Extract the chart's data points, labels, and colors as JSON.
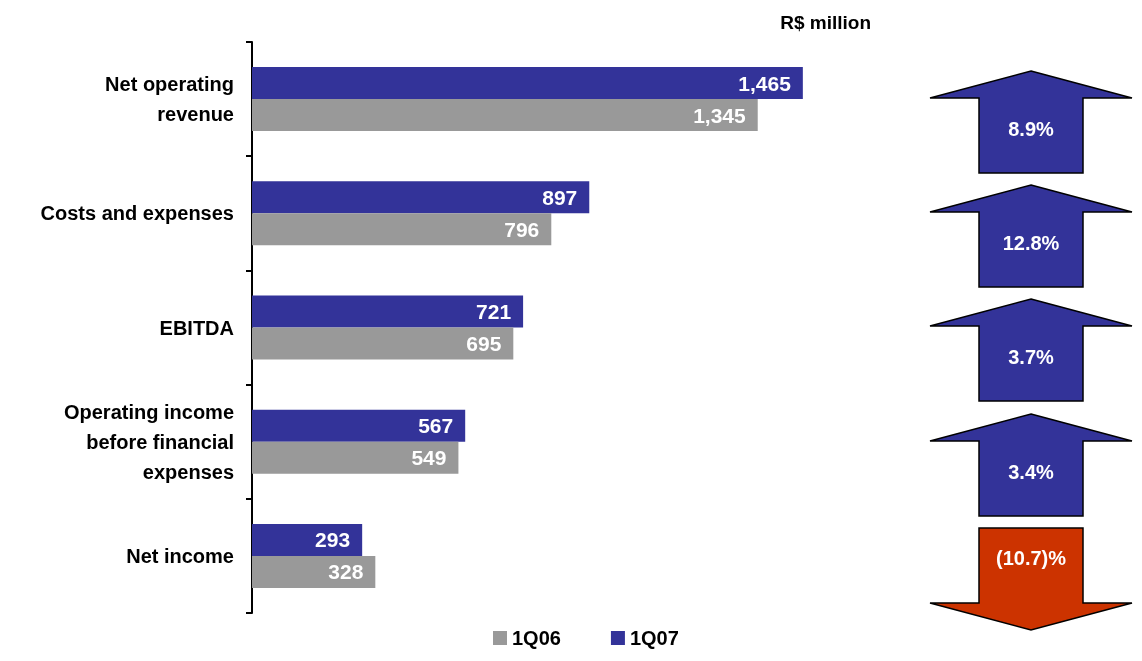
{
  "chart_data": {
    "type": "bar",
    "orientation": "horizontal",
    "title": "R$ million",
    "categories": [
      "Net operating revenue",
      "Costs and expenses",
      "EBITDA",
      "Operating income before financial expenses",
      "Net income"
    ],
    "series": [
      {
        "name": "1Q06",
        "color": "#999999",
        "values": [
          1345,
          796,
          695,
          549,
          328
        ],
        "value_labels": [
          "1,345",
          "796",
          "695",
          "549",
          "328"
        ]
      },
      {
        "name": "1Q07",
        "color": "#333399",
        "values": [
          1465,
          897,
          721,
          567,
          293
        ],
        "value_labels": [
          "1,465",
          "897",
          "721",
          "567",
          "293"
        ]
      }
    ],
    "annotations": [
      "8.9%",
      "12.8%",
      "3.7%",
      "3.4%",
      "(10.7)%"
    ],
    "legend": "bottom",
    "grid": false
  }
}
